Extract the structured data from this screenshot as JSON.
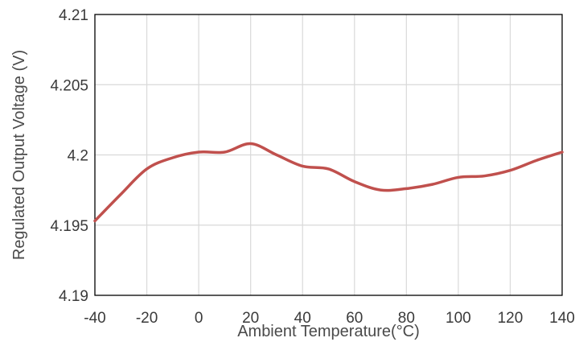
{
  "chart_data": {
    "type": "line",
    "xlabel": "Ambient Temperature(°C)",
    "ylabel": "Regulated Output Voltage (V)",
    "xlim": [
      -40,
      140
    ],
    "ylim": [
      4.19,
      4.21
    ],
    "xticks": [
      -40,
      -20,
      0,
      20,
      40,
      60,
      80,
      100,
      120,
      140
    ],
    "yticks": [
      4.19,
      4.195,
      4.2,
      4.205,
      4.21
    ],
    "xtick_labels": [
      "-40",
      "-20",
      "0",
      "20",
      "40",
      "60",
      "80",
      "100",
      "120",
      "140"
    ],
    "ytick_labels": [
      "4.19",
      "4.195",
      "4.2",
      "4.205",
      "4.21"
    ],
    "grid": true,
    "series": [
      {
        "color": "#c0504d",
        "x": [
          -40,
          -30,
          -20,
          -10,
          0,
          10,
          20,
          30,
          40,
          50,
          60,
          70,
          80,
          90,
          100,
          110,
          120,
          130,
          140
        ],
        "y": [
          4.1953,
          4.1972,
          4.199,
          4.1998,
          4.2002,
          4.2002,
          4.2008,
          4.2,
          4.1992,
          4.199,
          4.1981,
          4.1975,
          4.1976,
          4.1979,
          4.1984,
          4.1985,
          4.1989,
          4.1996,
          4.2002
        ]
      }
    ]
  }
}
